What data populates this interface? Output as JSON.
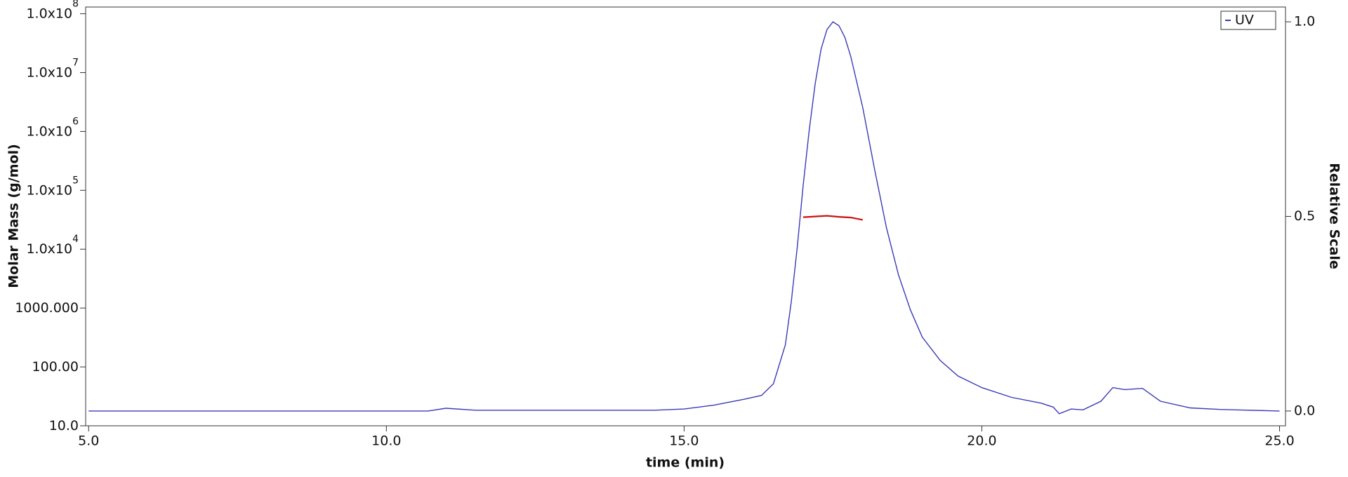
{
  "chart_data": {
    "type": "line",
    "xlabel": "time (min)",
    "ylabel": "Molar Mass (g/mol)",
    "y2label": "Relative Scale",
    "xlim": [
      4.95,
      25.1
    ],
    "xticks": [
      {
        "value": 5,
        "label": "5.0"
      },
      {
        "value": 10,
        "label": "10.0"
      },
      {
        "value": 15,
        "label": "15.0"
      },
      {
        "value": 20,
        "label": "20.0"
      },
      {
        "value": 25,
        "label": "25.0"
      }
    ],
    "ylog": true,
    "ylim": [
      10,
      130000000
    ],
    "yticks": [
      {
        "value": 10,
        "label": "10.0"
      },
      {
        "value": 100,
        "label": "100.00"
      },
      {
        "value": 1000,
        "label": "1000.000"
      },
      {
        "value": 10000,
        "label": "1.0x10",
        "sup": "4"
      },
      {
        "value": 100000,
        "label": "1.0x10",
        "sup": "5"
      },
      {
        "value": 1000000,
        "label": "1.0x10",
        "sup": "6"
      },
      {
        "value": 10000000,
        "label": "1.0x10",
        "sup": "7"
      },
      {
        "value": 100000000,
        "label": "1.0x10",
        "sup": "8"
      }
    ],
    "y2lim": [
      -0.038,
      1.038
    ],
    "y2ticks": [
      {
        "value": 0,
        "label": "0.0"
      },
      {
        "value": 0.5,
        "label": "0.5"
      },
      {
        "value": 1,
        "label": "1.0"
      }
    ],
    "legend": "upper right",
    "series": [
      {
        "name": "UV",
        "color": "#3a3ab8",
        "axis": "y2",
        "x": [
          5,
          10.7,
          11.0,
          11.5,
          14.5,
          15.0,
          15.5,
          16.0,
          16.3,
          16.5,
          16.7,
          16.8,
          16.9,
          17.0,
          17.1,
          17.2,
          17.3,
          17.4,
          17.5,
          17.6,
          17.7,
          17.8,
          18.0,
          18.2,
          18.4,
          18.6,
          18.8,
          19.0,
          19.3,
          19.6,
          20.0,
          20.5,
          21.0,
          21.2,
          21.3,
          21.5,
          21.7,
          22.0,
          22.2,
          22.4,
          22.7,
          23.0,
          23.5,
          24.0,
          25.0
        ],
        "values": [
          0.0,
          0.0,
          0.007,
          0.002,
          0.002,
          0.005,
          0.015,
          0.03,
          0.04,
          0.07,
          0.17,
          0.28,
          0.42,
          0.58,
          0.72,
          0.84,
          0.93,
          0.98,
          1.0,
          0.99,
          0.96,
          0.91,
          0.78,
          0.62,
          0.47,
          0.35,
          0.26,
          0.19,
          0.13,
          0.09,
          0.06,
          0.035,
          0.02,
          0.01,
          -0.007,
          0.005,
          0.003,
          0.025,
          0.06,
          0.055,
          0.058,
          0.025,
          0.008,
          0.004,
          0.0
        ]
      },
      {
        "color": "#d01010",
        "x": [
          17.0,
          17.2,
          17.4,
          17.6,
          17.8,
          18.0
        ],
        "values": [
          35000,
          36000,
          37000,
          35500,
          34500,
          31500
        ]
      }
    ]
  }
}
